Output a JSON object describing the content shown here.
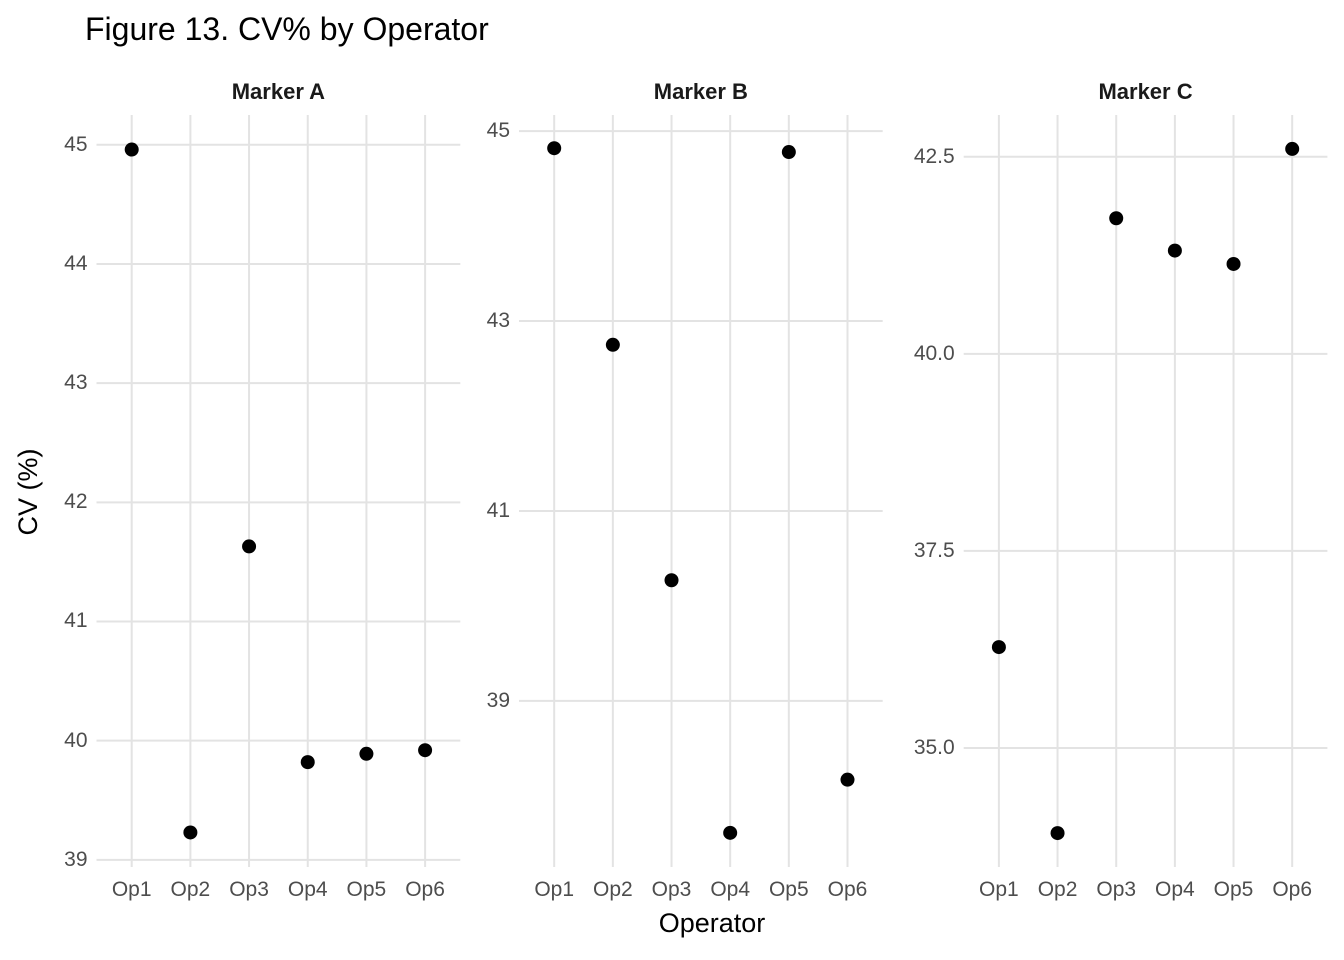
{
  "figure": {
    "title": "Figure 13. CV% by Operator",
    "x_axis_title": "Operator",
    "y_axis_title": "CV (%)"
  },
  "chart_data": {
    "type": "scatter",
    "title": "Figure 13. CV% by Operator",
    "xlabel": "Operator",
    "ylabel": "CV (%)",
    "categories": [
      "Op1",
      "Op2",
      "Op3",
      "Op4",
      "Op5",
      "Op6"
    ],
    "grid": true,
    "legend": false,
    "point_color": "#000000",
    "grid_color": "#e3e3e3",
    "tick_label_color": "#4d4d4d",
    "facets": [
      {
        "title": "Marker A",
        "values": [
          44.96,
          39.23,
          41.63,
          39.82,
          39.89,
          39.92
        ],
        "y_ticks": [
          39,
          40,
          41,
          42,
          43,
          44,
          45
        ],
        "y_tick_labels": [
          "39",
          "40",
          "41",
          "42",
          "43",
          "44",
          "45"
        ],
        "ylim": [
          38.94,
          45.25
        ]
      },
      {
        "title": "Marker B",
        "values": [
          44.82,
          42.75,
          40.27,
          37.61,
          44.78,
          38.17
        ],
        "y_ticks": [
          39,
          41,
          43,
          45
        ],
        "y_tick_labels": [
          "39",
          "41",
          "43",
          "45"
        ],
        "ylim": [
          37.25,
          45.17
        ]
      },
      {
        "title": "Marker C",
        "values": [
          36.28,
          33.92,
          41.72,
          41.31,
          41.14,
          42.6
        ],
        "y_ticks": [
          35.0,
          37.5,
          40.0,
          42.5
        ],
        "y_tick_labels": [
          "35.0",
          "37.5",
          "40.0",
          "42.5"
        ],
        "ylim": [
          33.49,
          43.03
        ]
      }
    ]
  }
}
